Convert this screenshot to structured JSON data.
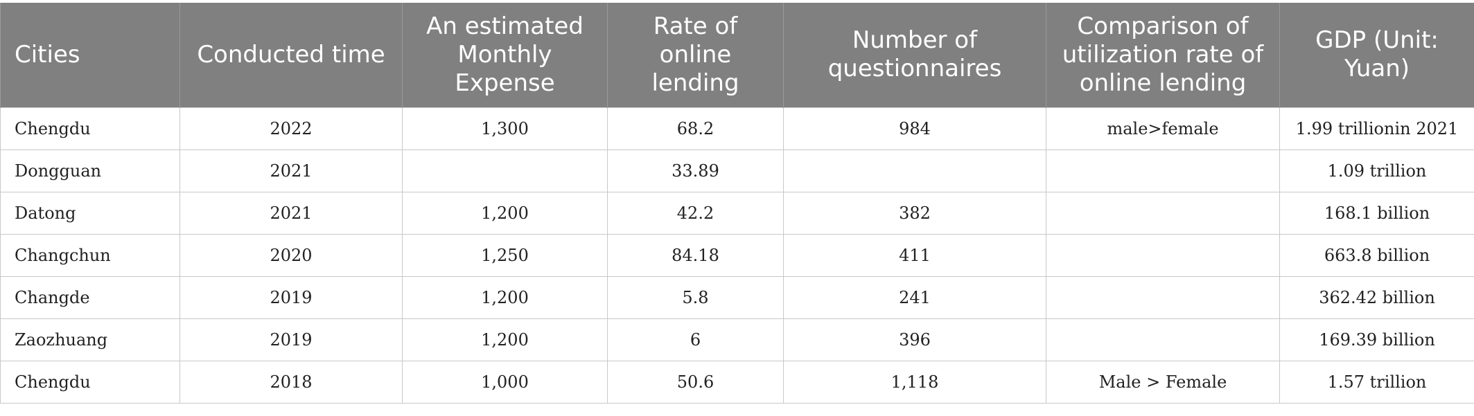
{
  "table": {
    "headers": [
      "Cities",
      "Conducted time",
      "An estimated Monthly Expense",
      "Rate of online lending",
      "Number of questionnaires",
      "Comparison of utilization rate of online lending",
      "GDP (Unit: Yuan)"
    ],
    "rows": [
      [
        "Chengdu",
        "2022",
        "1,300",
        "68.2",
        "984",
        "male>female",
        "1.99 trillionin 2021"
      ],
      [
        "Dongguan",
        "2021",
        "",
        "33.89",
        "",
        "",
        "1.09 trillion"
      ],
      [
        "Datong",
        "2021",
        "1,200",
        "42.2",
        "382",
        "",
        "168.1 billion"
      ],
      [
        "Changchun",
        "2020",
        "1,250",
        "84.18",
        "411",
        "",
        "663.8 billion"
      ],
      [
        "Changde",
        "2019",
        "1,200",
        "5.8",
        "241",
        "",
        "362.42 billion"
      ],
      [
        "Zaozhuang",
        "2019",
        "1,200",
        "6",
        "396",
        "",
        "169.39 billion"
      ],
      [
        "Chengdu",
        "2018",
        "1,000",
        "50.6",
        "1,118",
        "Male > Female",
        "1.57 trillion"
      ]
    ]
  }
}
